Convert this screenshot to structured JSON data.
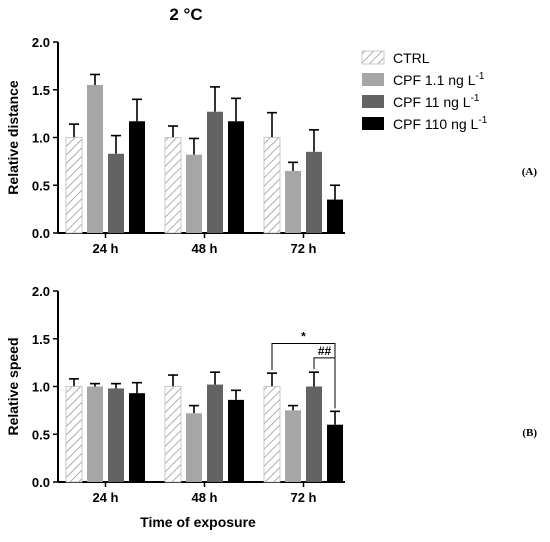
{
  "title": "2 °C",
  "xlabel": "Time of exposure",
  "colors": {
    "ctrl_fill": "url(#hatch)",
    "cpf_1_1": "#a6a6a6",
    "cpf_11": "#636363",
    "cpf_110": "#000000",
    "error_bar": "#000000"
  },
  "legend": {
    "entries": [
      {
        "label": "CTRL",
        "key": "ctrl"
      },
      {
        "label": "CPF 1.1 ng L",
        "sup": "-1",
        "key": "cpf_1_1"
      },
      {
        "label": "CPF 11 ng L",
        "sup": "-1",
        "key": "cpf_11"
      },
      {
        "label": "CPF 110 ng L",
        "sup": "-1",
        "key": "cpf_110"
      }
    ]
  },
  "chart_data": [
    {
      "type": "bar",
      "panel_label": "(A)",
      "ylabel": "Relative distance",
      "ylim": [
        0,
        2.0
      ],
      "yticks": [
        "0.0",
        "0.5",
        "1.0",
        "1.5",
        "2.0"
      ],
      "categories": [
        "24 h",
        "48 h",
        "72 h"
      ],
      "series": [
        {
          "name": "CTRL",
          "key": "ctrl",
          "values": [
            1.0,
            1.0,
            1.0
          ],
          "errors": [
            0.14,
            0.12,
            0.26
          ]
        },
        {
          "name": "CPF 1.1 ng L-1",
          "key": "cpf_1_1",
          "values": [
            1.55,
            0.82,
            0.65
          ],
          "errors": [
            0.11,
            0.17,
            0.09
          ]
        },
        {
          "name": "CPF 11 ng L-1",
          "key": "cpf_11",
          "values": [
            0.83,
            1.27,
            0.85
          ],
          "errors": [
            0.19,
            0.26,
            0.23
          ]
        },
        {
          "name": "CPF 110 ng L-1",
          "key": "cpf_110",
          "values": [
            1.17,
            1.17,
            0.35
          ],
          "errors": [
            0.23,
            0.24,
            0.15
          ]
        }
      ],
      "annotations": []
    },
    {
      "type": "bar",
      "panel_label": "(B)",
      "ylabel": "Relative speed",
      "ylim": [
        0,
        2.0
      ],
      "yticks": [
        "0.0",
        "0.5",
        "1.0",
        "1.5",
        "2.0"
      ],
      "categories": [
        "24 h",
        "48 h",
        "72 h"
      ],
      "series": [
        {
          "name": "CTRL",
          "key": "ctrl",
          "values": [
            1.0,
            1.0,
            1.0
          ],
          "errors": [
            0.08,
            0.12,
            0.14
          ]
        },
        {
          "name": "CPF 1.1 ng L-1",
          "key": "cpf_1_1",
          "values": [
            1.0,
            0.72,
            0.75
          ],
          "errors": [
            0.03,
            0.08,
            0.05
          ]
        },
        {
          "name": "CPF 11 ng L-1",
          "key": "cpf_11",
          "values": [
            0.98,
            1.02,
            1.0
          ],
          "errors": [
            0.05,
            0.13,
            0.15
          ]
        },
        {
          "name": "CPF 110 ng L-1",
          "key": "cpf_110",
          "values": [
            0.93,
            0.86,
            0.6
          ],
          "errors": [
            0.11,
            0.1,
            0.14
          ]
        }
      ],
      "annotations": [
        {
          "text": "*",
          "category": "72 h",
          "from_series": "ctrl",
          "to_series": "cpf_110",
          "level": 1.45
        },
        {
          "text": "##",
          "category": "72 h",
          "from_series": "cpf_11",
          "to_series": "cpf_110",
          "level": 1.3
        }
      ]
    }
  ]
}
